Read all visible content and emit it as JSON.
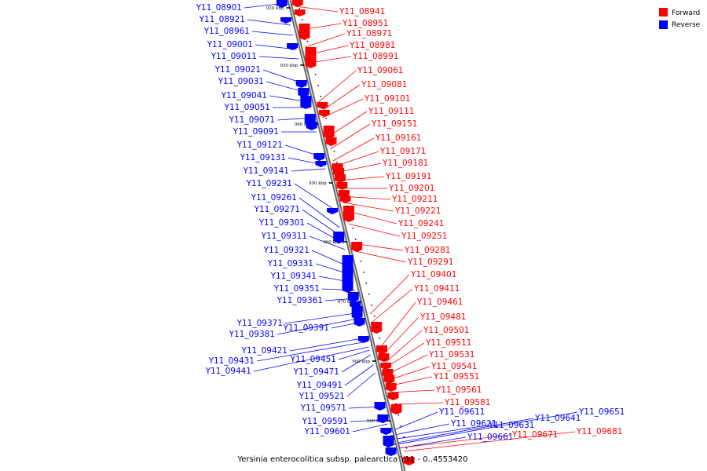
{
  "caption": "Yersinia enterocolitica subsp. palearctica Y11 - 0..4553420",
  "legend": [
    {
      "label": "Forward",
      "color": "#ff0000"
    },
    {
      "label": "Reverse",
      "color": "#0000ff"
    }
  ],
  "colors": {
    "forward": "#ff0000",
    "reverse": "#0000ff",
    "axis": "#999999"
  },
  "ticks": [
    "920 kbp",
    "930 kbp",
    "940 kbp",
    "950 kbp",
    "960 kbp",
    "970 kbp",
    "980 kbp",
    "990 kbp"
  ],
  "reverse_labels": [
    "Y11_08901",
    "Y11_08921",
    "Y11_08961",
    "Y11_09001",
    "Y11_09011",
    "Y11_09021",
    "Y11_09031",
    "Y11_09041",
    "Y11_09051",
    "Y11_09071",
    "Y11_09091",
    "Y11_09121",
    "Y11_09131",
    "Y11_09141",
    "Y11_09231",
    "Y11_09261",
    "Y11_09271",
    "Y11_09301",
    "Y11_09311",
    "Y11_09321",
    "Y11_09331",
    "Y11_09341",
    "Y11_09351",
    "Y11_09361",
    "Y11_09371",
    "Y11_09381",
    "Y11_09391",
    "Y11_09421",
    "Y11_09431",
    "Y11_09441",
    "Y11_09451",
    "Y11_09471",
    "Y11_09491",
    "Y11_09521",
    "Y11_09571",
    "Y11_09591",
    "Y11_09601",
    "Y11_09611",
    "Y11_09621",
    "Y11_09631",
    "Y11_09641",
    "Y11_09651",
    "Y11_09661"
  ],
  "forward_labels": [
    "Y11_08941",
    "Y11_08951",
    "Y11_08971",
    "Y11_08981",
    "Y11_08991",
    "Y11_09061",
    "Y11_09081",
    "Y11_09101",
    "Y11_09111",
    "Y11_09151",
    "Y11_09161",
    "Y11_09171",
    "Y11_09181",
    "Y11_09191",
    "Y11_09201",
    "Y11_09211",
    "Y11_09221",
    "Y11_09241",
    "Y11_09251",
    "Y11_09281",
    "Y11_09291",
    "Y11_09401",
    "Y11_09411",
    "Y11_09461",
    "Y11_09481",
    "Y11_09501",
    "Y11_09511",
    "Y11_09531",
    "Y11_09541",
    "Y11_09551",
    "Y11_09561",
    "Y11_09581",
    "Y11_09671",
    "Y11_09681"
  ]
}
